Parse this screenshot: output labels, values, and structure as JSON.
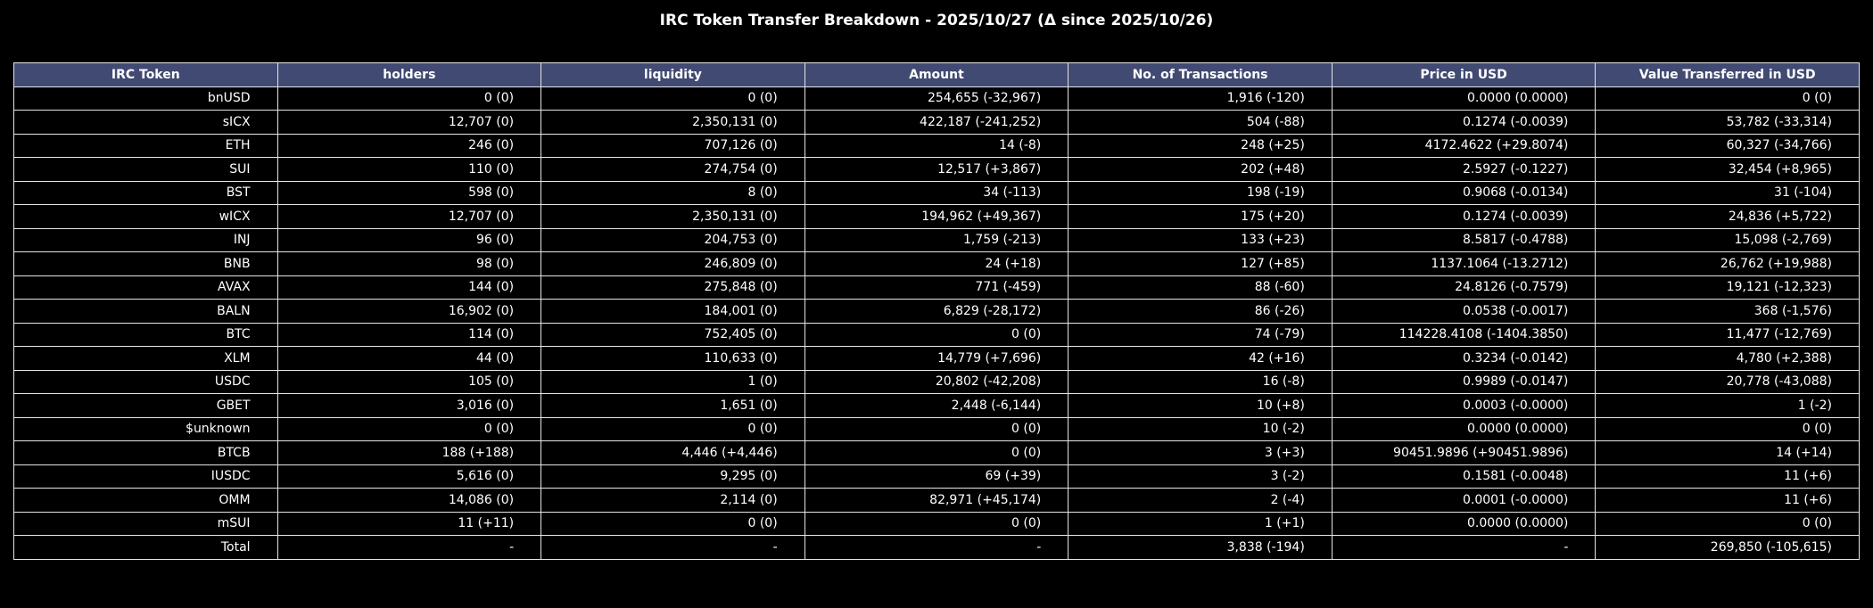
{
  "chart_data": {
    "type": "table",
    "title": "IRC Token Transfer Breakdown - 2025/10/27 (Δ since 2025/10/26)",
    "columns": [
      "IRC Token",
      "holders",
      "liquidity",
      "Amount",
      "No. of Transactions",
      "Price in USD",
      "Value Transferred in USD"
    ],
    "rows": [
      [
        "bnUSD",
        "0 (0)",
        "0 (0)",
        "254,655 (-32,967)",
        "1,916 (-120)",
        "0.0000 (0.0000)",
        "0 (0)"
      ],
      [
        "sICX",
        "12,707 (0)",
        "2,350,131 (0)",
        "422,187 (-241,252)",
        "504 (-88)",
        "0.1274 (-0.0039)",
        "53,782 (-33,314)"
      ],
      [
        "ETH",
        "246 (0)",
        "707,126 (0)",
        "14 (-8)",
        "248 (+25)",
        "4172.4622 (+29.8074)",
        "60,327 (-34,766)"
      ],
      [
        "SUI",
        "110 (0)",
        "274,754 (0)",
        "12,517 (+3,867)",
        "202 (+48)",
        "2.5927 (-0.1227)",
        "32,454 (+8,965)"
      ],
      [
        "BST",
        "598 (0)",
        "8 (0)",
        "34 (-113)",
        "198 (-19)",
        "0.9068 (-0.0134)",
        "31 (-104)"
      ],
      [
        "wICX",
        "12,707 (0)",
        "2,350,131 (0)",
        "194,962 (+49,367)",
        "175 (+20)",
        "0.1274 (-0.0039)",
        "24,836 (+5,722)"
      ],
      [
        "INJ",
        "96 (0)",
        "204,753 (0)",
        "1,759 (-213)",
        "133 (+23)",
        "8.5817 (-0.4788)",
        "15,098 (-2,769)"
      ],
      [
        "BNB",
        "98 (0)",
        "246,809 (0)",
        "24 (+18)",
        "127 (+85)",
        "1137.1064 (-13.2712)",
        "26,762 (+19,988)"
      ],
      [
        "AVAX",
        "144 (0)",
        "275,848 (0)",
        "771 (-459)",
        "88 (-60)",
        "24.8126 (-0.7579)",
        "19,121 (-12,323)"
      ],
      [
        "BALN",
        "16,902 (0)",
        "184,001 (0)",
        "6,829 (-28,172)",
        "86 (-26)",
        "0.0538 (-0.0017)",
        "368 (-1,576)"
      ],
      [
        "BTC",
        "114 (0)",
        "752,405 (0)",
        "0 (0)",
        "74 (-79)",
        "114228.4108 (-1404.3850)",
        "11,477 (-12,769)"
      ],
      [
        "XLM",
        "44 (0)",
        "110,633 (0)",
        "14,779 (+7,696)",
        "42 (+16)",
        "0.3234 (-0.0142)",
        "4,780 (+2,388)"
      ],
      [
        "USDC",
        "105 (0)",
        "1 (0)",
        "20,802 (-42,208)",
        "16 (-8)",
        "0.9989 (-0.0147)",
        "20,778 (-43,088)"
      ],
      [
        "GBET",
        "3,016 (0)",
        "1,651 (0)",
        "2,448 (-6,144)",
        "10 (+8)",
        "0.0003 (-0.0000)",
        "1 (-2)"
      ],
      [
        "$unknown",
        "0 (0)",
        "0 (0)",
        "0 (0)",
        "10 (-2)",
        "0.0000 (0.0000)",
        "0 (0)"
      ],
      [
        "BTCB",
        "188 (+188)",
        "4,446 (+4,446)",
        "0 (0)",
        "3 (+3)",
        "90451.9896 (+90451.9896)",
        "14 (+14)"
      ],
      [
        "IUSDC",
        "5,616 (0)",
        "9,295 (0)",
        "69 (+39)",
        "3 (-2)",
        "0.1581 (-0.0048)",
        "11 (+6)"
      ],
      [
        "OMM",
        "14,086 (0)",
        "2,114 (0)",
        "82,971 (+45,174)",
        "2 (-4)",
        "0.0001 (-0.0000)",
        "11 (+6)"
      ],
      [
        "mSUI",
        "11 (+11)",
        "0 (0)",
        "0 (0)",
        "1 (+1)",
        "0.0000 (0.0000)",
        "0 (0)"
      ],
      [
        "Total",
        "-",
        "-",
        "-",
        "3,838 (-194)",
        "-",
        "269,850 (-105,615)"
      ]
    ]
  },
  "colors": {
    "background": "#000000",
    "header_fill": "#414a72",
    "grid": "#e6e6e6",
    "text": "#ffffff"
  }
}
